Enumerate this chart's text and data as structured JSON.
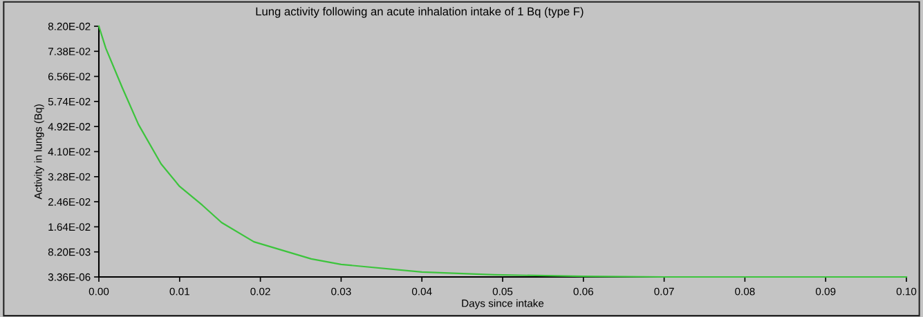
{
  "chart_data": {
    "type": "line",
    "title": "Lung activity following an acute inhalation intake of 1 Bq (type F)",
    "xlabel": "Days since intake",
    "ylabel": "Activity in lungs (Bq)",
    "x": [
      0,
      0.00086,
      0.0029,
      0.0049,
      0.0077,
      0.01,
      0.0128,
      0.0152,
      0.0192,
      0.0263,
      0.03,
      0.04,
      0.049,
      0.06,
      0.07,
      0.08,
      0.09,
      0.1
    ],
    "series": [
      {
        "color": "#3cc43c",
        "values": [
          0.082,
          0.0748,
          0.0619,
          0.0499,
          0.037,
          0.0296,
          0.0235,
          0.0178,
          0.0115,
          0.0059,
          0.0041,
          0.0016,
          0.0007,
          0.0002,
          3.36e-06,
          3.36e-06,
          3.36e-06,
          3.36e-06
        ]
      }
    ],
    "xlim": [
      0,
      0.1
    ],
    "xticks": [
      {
        "value": 0,
        "label": "0.00"
      },
      0.01,
      0.02,
      0.03,
      0.04,
      0.05,
      0.06,
      0.07,
      0.08,
      0.09,
      {
        "value": 0.1,
        "label": "0.10"
      }
    ],
    "ylim": [
      3.36e-06,
      0.082
    ],
    "yticks": [
      {
        "value": 3.36e-06,
        "label": "3.36E-06"
      },
      {
        "value": 0.0082,
        "label": "8.20E-03"
      },
      {
        "value": 0.0164,
        "label": "1.64E-02"
      },
      {
        "value": 0.0246,
        "label": "2.46E-02"
      },
      {
        "value": 0.0328,
        "label": "3.28E-02"
      },
      {
        "value": 0.041,
        "label": "4.10E-02"
      },
      {
        "value": 0.0492,
        "label": "4.92E-02"
      },
      {
        "value": 0.0574,
        "label": "5.74E-02"
      },
      {
        "value": 0.0656,
        "label": "6.56E-02"
      },
      {
        "value": 0.0738,
        "label": "7.38E-02"
      },
      {
        "value": 0.082,
        "label": "8.20E-02"
      }
    ],
    "grid": false,
    "marker": "none",
    "line_style": "solid"
  }
}
